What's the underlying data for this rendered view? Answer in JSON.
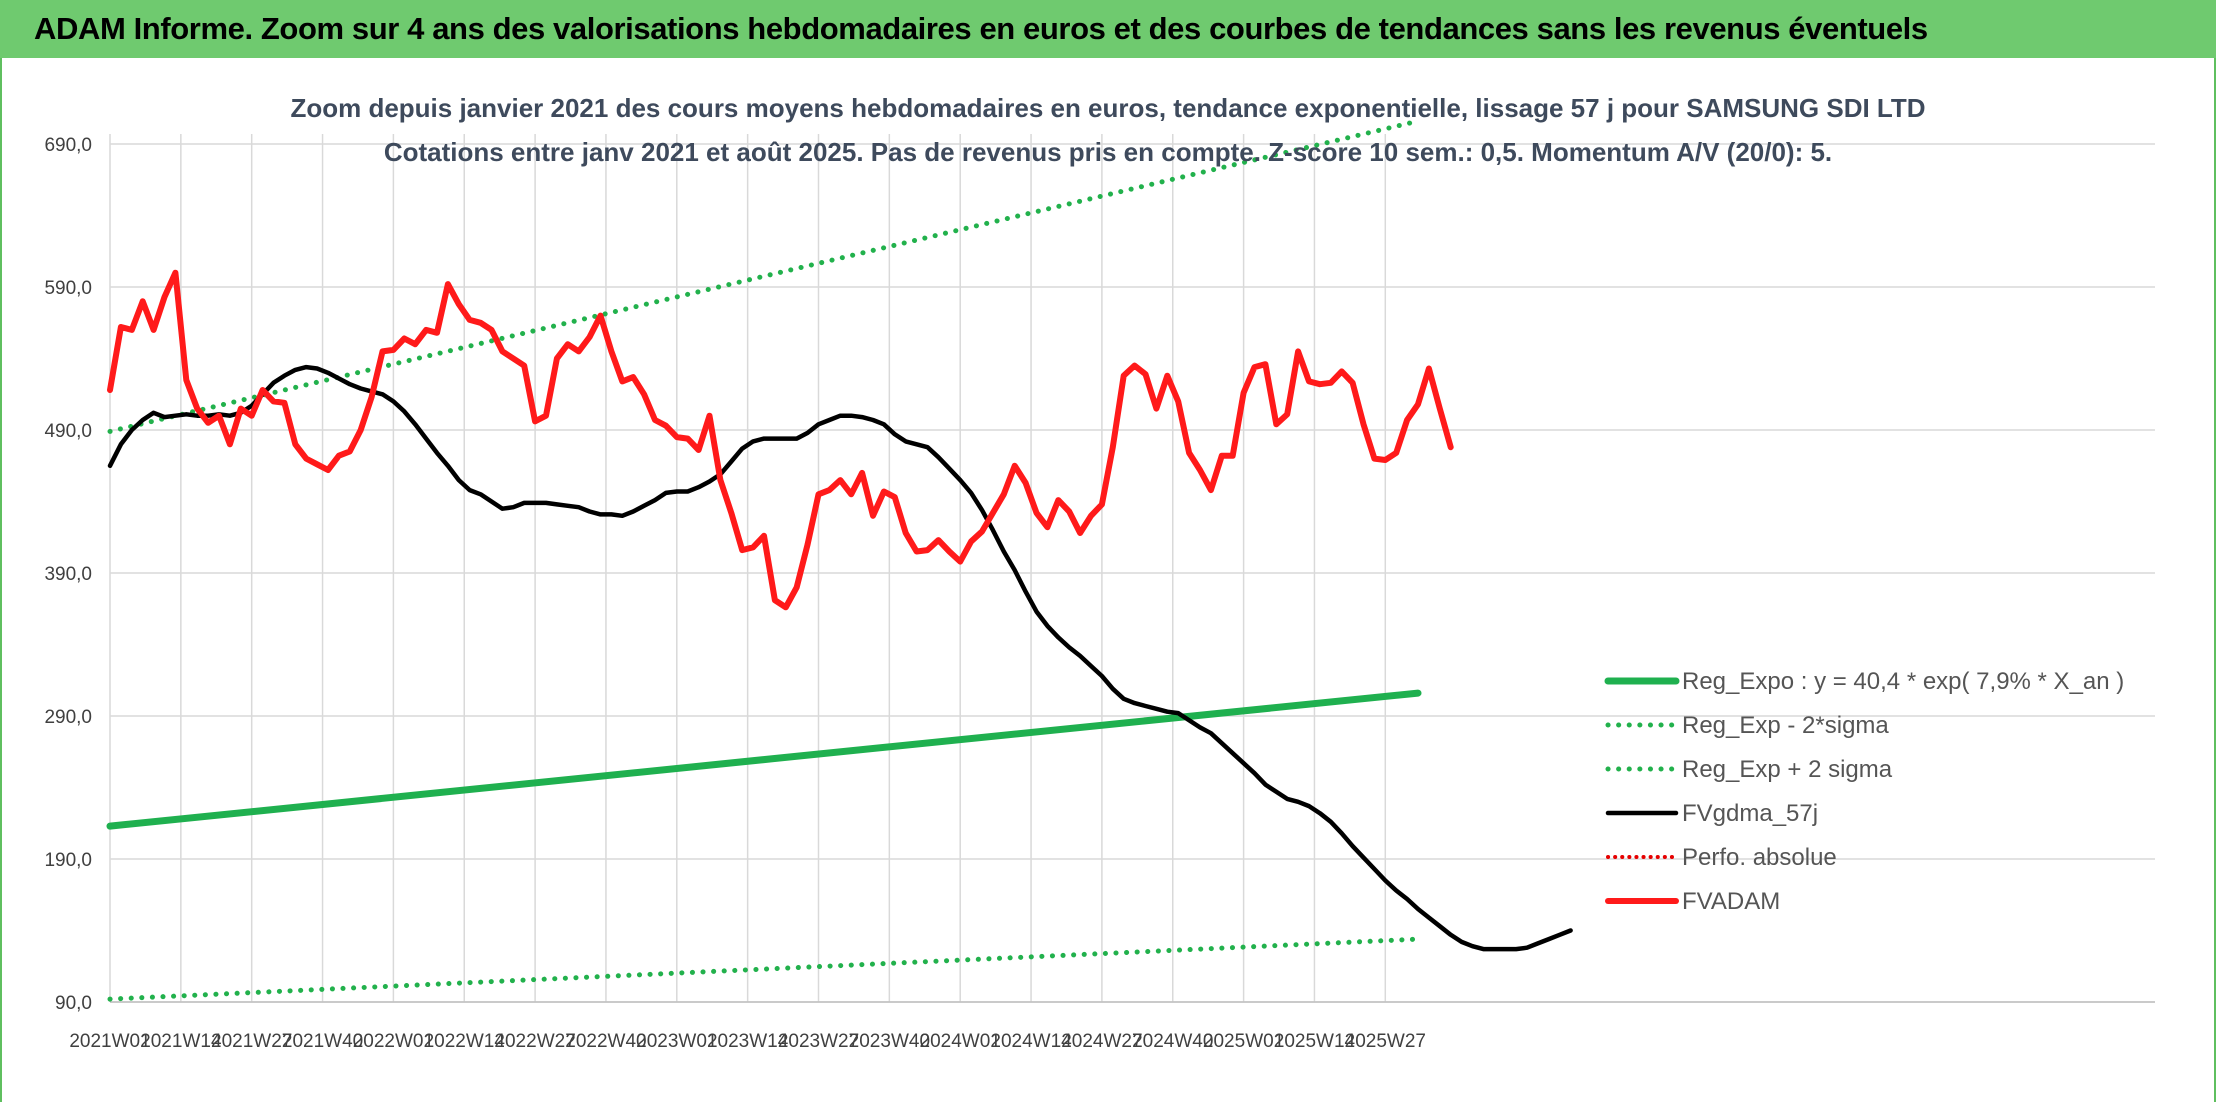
{
  "banner": {
    "title": "ADAM Informe. Zoom sur 4 ans des valorisations hebdomadaires en euros et des courbes de tendances sans les revenus éventuels"
  },
  "colors": {
    "banner_bg": "#6fca6f",
    "trend_green": "#1fb04f",
    "dotted_green": "#22b14c",
    "fvgdma_black": "#000000",
    "fvadam_red": "#ff1a1a",
    "perfo_red": "#e60000",
    "grid": "#d9d9d9"
  },
  "chart_data": {
    "type": "line",
    "title": "Zoom depuis janvier 2021 des cours moyens hebdomadaires en euros, tendance exponentielle, lissage 57 j pour SAMSUNG SDI LTD",
    "subtitle": "Cotations entre janv 2021 et août 2025. Pas de revenus pris en compte. Z-score 10 sem.: 0,5. Momentum A/V (20/0): 5.",
    "xlabel": "",
    "ylabel": "",
    "ylim": [
      90,
      690
    ],
    "yticks": [
      "90,0",
      "190,0",
      "290,0",
      "390,0",
      "490,0",
      "590,0",
      "690,0"
    ],
    "x_ticks": [
      "2021W01",
      "2021W14",
      "2021W27",
      "2021W40",
      "2022W01",
      "2022W14",
      "2022W27",
      "2022W40",
      "2023W01",
      "2023W14",
      "2023W27",
      "2023W40",
      "2024W01",
      "2024W14",
      "2024W27",
      "2024W40",
      "2025W01",
      "2025W14",
      "2025W27"
    ],
    "x_start": "2021W01",
    "x_end": "2025W33",
    "grid": true,
    "legend_position": "right",
    "series": [
      {
        "name": "Reg_Expo : y = 40,4 * exp( 7,9% *  X_an )",
        "style": "solid-green-thick",
        "points": [
          [
            0,
            213
          ],
          [
            240,
            306
          ]
        ]
      },
      {
        "name": "Reg_Exp - 2*sigma",
        "style": "dotted-green",
        "points": [
          [
            0,
            92
          ],
          [
            240,
            134
          ]
        ]
      },
      {
        "name": "Reg_Exp + 2 sigma",
        "style": "dotted-green",
        "points": [
          [
            0,
            489
          ],
          [
            240,
            706
          ]
        ]
      },
      {
        "name": "FVgdma_57j",
        "style": "solid-black",
        "points": [
          [
            0,
            465
          ],
          [
            2,
            480
          ],
          [
            4,
            490
          ],
          [
            6,
            497
          ],
          [
            8,
            502
          ],
          [
            10,
            499
          ],
          [
            12,
            500
          ],
          [
            14,
            501
          ],
          [
            16,
            500
          ],
          [
            18,
            500
          ],
          [
            20,
            501
          ],
          [
            22,
            500
          ],
          [
            24,
            502
          ],
          [
            26,
            507
          ],
          [
            28,
            515
          ],
          [
            30,
            523
          ],
          [
            32,
            528
          ],
          [
            34,
            532
          ],
          [
            36,
            534
          ],
          [
            38,
            533
          ],
          [
            40,
            530
          ],
          [
            42,
            526
          ],
          [
            44,
            522
          ],
          [
            46,
            519
          ],
          [
            48,
            517
          ],
          [
            50,
            515
          ],
          [
            52,
            510
          ],
          [
            54,
            503
          ],
          [
            56,
            494
          ],
          [
            58,
            484
          ],
          [
            60,
            474
          ],
          [
            62,
            465
          ],
          [
            64,
            455
          ],
          [
            66,
            448
          ],
          [
            68,
            445
          ],
          [
            70,
            440
          ],
          [
            72,
            435
          ],
          [
            74,
            436
          ],
          [
            76,
            439
          ],
          [
            78,
            439
          ],
          [
            80,
            439
          ],
          [
            82,
            438
          ],
          [
            84,
            437
          ],
          [
            86,
            436
          ],
          [
            88,
            433
          ],
          [
            90,
            431
          ],
          [
            92,
            431
          ],
          [
            94,
            430
          ],
          [
            96,
            433
          ],
          [
            98,
            437
          ],
          [
            100,
            441
          ],
          [
            102,
            446
          ],
          [
            104,
            447
          ],
          [
            106,
            447
          ],
          [
            108,
            450
          ],
          [
            110,
            454
          ],
          [
            112,
            459
          ],
          [
            114,
            468
          ],
          [
            116,
            477
          ],
          [
            118,
            482
          ],
          [
            120,
            484
          ],
          [
            122,
            484
          ],
          [
            124,
            484
          ],
          [
            126,
            484
          ],
          [
            128,
            488
          ],
          [
            130,
            494
          ],
          [
            132,
            497
          ],
          [
            134,
            500
          ],
          [
            136,
            500
          ],
          [
            138,
            499
          ],
          [
            140,
            497
          ],
          [
            142,
            494
          ],
          [
            144,
            487
          ],
          [
            146,
            482
          ],
          [
            148,
            480
          ],
          [
            150,
            478
          ],
          [
            152,
            471
          ],
          [
            154,
            463
          ],
          [
            156,
            455
          ],
          [
            158,
            446
          ],
          [
            160,
            434
          ],
          [
            162,
            420
          ],
          [
            164,
            405
          ],
          [
            166,
            392
          ],
          [
            168,
            377
          ],
          [
            170,
            363
          ],
          [
            172,
            353
          ],
          [
            174,
            345
          ],
          [
            176,
            338
          ],
          [
            178,
            332
          ],
          [
            180,
            325
          ],
          [
            182,
            318
          ],
          [
            184,
            309
          ],
          [
            186,
            302
          ],
          [
            188,
            299
          ],
          [
            190,
            297
          ],
          [
            192,
            295
          ],
          [
            194,
            293
          ],
          [
            196,
            292
          ],
          [
            198,
            287
          ],
          [
            200,
            282
          ],
          [
            202,
            278
          ],
          [
            204,
            271
          ],
          [
            206,
            264
          ],
          [
            208,
            257
          ],
          [
            210,
            250
          ],
          [
            212,
            242
          ],
          [
            214,
            237
          ],
          [
            216,
            232
          ],
          [
            218,
            230
          ],
          [
            220,
            227
          ],
          [
            222,
            222
          ],
          [
            224,
            216
          ],
          [
            226,
            208
          ],
          [
            228,
            199
          ],
          [
            230,
            191
          ],
          [
            232,
            183
          ],
          [
            234,
            175
          ],
          [
            236,
            168
          ],
          [
            238,
            162
          ],
          [
            240,
            155
          ],
          [
            242,
            149
          ],
          [
            244,
            143
          ],
          [
            246,
            137
          ],
          [
            248,
            132
          ],
          [
            250,
            129
          ],
          [
            252,
            127
          ],
          [
            254,
            127
          ],
          [
            256,
            127
          ],
          [
            258,
            127
          ],
          [
            260,
            128
          ],
          [
            262,
            131
          ],
          [
            264,
            134
          ],
          [
            266,
            137
          ],
          [
            268,
            140
          ]
        ]
      },
      {
        "name": "Perfo. absolue",
        "style": "dotted-red",
        "points": []
      },
      {
        "name": "FVADAM",
        "style": "solid-red-thick",
        "points": [
          [
            0,
            518
          ],
          [
            2,
            562
          ],
          [
            4,
            560
          ],
          [
            6,
            580
          ],
          [
            8,
            560
          ],
          [
            10,
            583
          ],
          [
            12,
            600
          ],
          [
            14,
            525
          ],
          [
            16,
            505
          ],
          [
            18,
            495
          ],
          [
            20,
            500
          ],
          [
            22,
            480
          ],
          [
            24,
            505
          ],
          [
            26,
            500
          ],
          [
            28,
            518
          ],
          [
            30,
            510
          ],
          [
            32,
            509
          ],
          [
            34,
            480
          ],
          [
            36,
            470
          ],
          [
            38,
            466
          ],
          [
            40,
            462
          ],
          [
            42,
            472
          ],
          [
            44,
            475
          ],
          [
            46,
            490
          ],
          [
            48,
            513
          ],
          [
            50,
            545
          ],
          [
            52,
            546
          ],
          [
            54,
            554
          ],
          [
            56,
            550
          ],
          [
            58,
            560
          ],
          [
            60,
            558
          ],
          [
            62,
            592
          ],
          [
            64,
            578
          ],
          [
            66,
            567
          ],
          [
            68,
            565
          ],
          [
            70,
            560
          ],
          [
            72,
            545
          ],
          [
            74,
            540
          ],
          [
            76,
            535
          ],
          [
            78,
            496
          ],
          [
            80,
            500
          ],
          [
            82,
            540
          ],
          [
            84,
            550
          ],
          [
            86,
            545
          ],
          [
            88,
            555
          ],
          [
            90,
            570
          ],
          [
            92,
            545
          ],
          [
            94,
            524
          ],
          [
            96,
            527
          ],
          [
            98,
            515
          ],
          [
            100,
            497
          ],
          [
            102,
            493
          ],
          [
            104,
            485
          ],
          [
            106,
            484
          ],
          [
            108,
            476
          ],
          [
            110,
            500
          ],
          [
            112,
            455
          ],
          [
            114,
            432
          ],
          [
            116,
            406
          ],
          [
            118,
            408
          ],
          [
            120,
            416
          ],
          [
            122,
            371
          ],
          [
            124,
            366
          ],
          [
            126,
            380
          ],
          [
            128,
            410
          ],
          [
            130,
            445
          ],
          [
            132,
            448
          ],
          [
            134,
            455
          ],
          [
            136,
            445
          ],
          [
            138,
            460
          ],
          [
            140,
            430
          ],
          [
            142,
            447
          ],
          [
            144,
            443
          ],
          [
            146,
            418
          ],
          [
            148,
            405
          ],
          [
            150,
            406
          ],
          [
            152,
            413
          ],
          [
            154,
            405
          ],
          [
            156,
            398
          ],
          [
            158,
            412
          ],
          [
            160,
            419
          ],
          [
            162,
            432
          ],
          [
            164,
            445
          ],
          [
            166,
            465
          ],
          [
            168,
            453
          ],
          [
            170,
            432
          ],
          [
            172,
            422
          ],
          [
            174,
            441
          ],
          [
            176,
            433
          ],
          [
            178,
            418
          ],
          [
            180,
            430
          ],
          [
            182,
            438
          ],
          [
            184,
            478
          ],
          [
            186,
            528
          ],
          [
            188,
            535
          ],
          [
            190,
            529
          ],
          [
            192,
            505
          ],
          [
            194,
            528
          ],
          [
            196,
            510
          ],
          [
            198,
            474
          ],
          [
            200,
            462
          ],
          [
            202,
            448
          ],
          [
            204,
            472
          ],
          [
            206,
            472
          ],
          [
            208,
            516
          ],
          [
            210,
            534
          ],
          [
            212,
            536
          ],
          [
            214,
            494
          ],
          [
            216,
            501
          ],
          [
            218,
            545
          ],
          [
            220,
            524
          ],
          [
            222,
            522
          ],
          [
            224,
            523
          ],
          [
            226,
            531
          ],
          [
            228,
            523
          ],
          [
            230,
            494
          ],
          [
            232,
            470
          ],
          [
            234,
            469
          ],
          [
            236,
            474
          ],
          [
            238,
            497
          ],
          [
            240,
            508
          ],
          [
            242,
            533
          ],
          [
            244,
            505
          ],
          [
            246,
            478
          ]
        ]
      }
    ]
  }
}
